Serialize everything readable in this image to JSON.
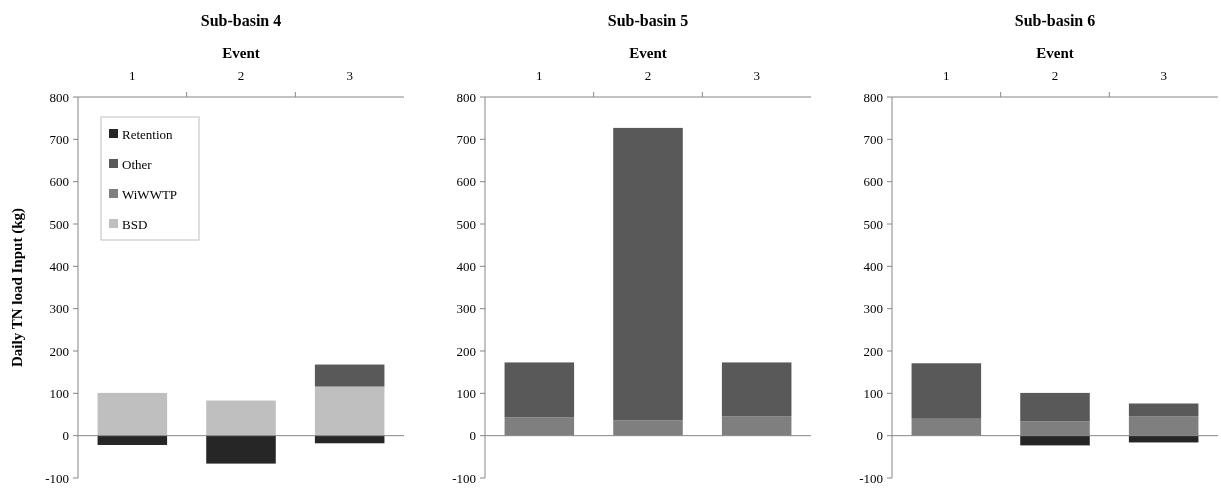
{
  "chart_data": [
    {
      "type": "bar",
      "title": "Sub-basin 4",
      "xlabel": "Event",
      "ylabel": "Daily TN load Input (kg)",
      "categories": [
        "1",
        "2",
        "3"
      ],
      "stacked": true,
      "ylim": [
        -100,
        800
      ],
      "yticks": [
        -100,
        0,
        100,
        200,
        300,
        400,
        500,
        600,
        700,
        800
      ],
      "legend": "top left",
      "series": [
        {
          "name": "BSD",
          "color": "#bfbfbf",
          "values": [
            101,
            83,
            116
          ]
        },
        {
          "name": "WiWWTP",
          "color": "#7f7f7f",
          "values": [
            0,
            0,
            0
          ]
        },
        {
          "name": "Other",
          "color": "#595959",
          "values": [
            0,
            0,
            52
          ]
        },
        {
          "name": "Retention",
          "color": "#262626",
          "values": [
            -22,
            -66,
            -18
          ]
        }
      ]
    },
    {
      "type": "bar",
      "title": "Sub-basin 5",
      "xlabel": "Event",
      "categories": [
        "1",
        "2",
        "3"
      ],
      "stacked": true,
      "ylim": [
        -100,
        800
      ],
      "yticks": [
        -100,
        0,
        100,
        200,
        300,
        400,
        500,
        600,
        700,
        800
      ],
      "series": [
        {
          "color": "#bfbfbf",
          "values": [
            0,
            0,
            0
          ]
        },
        {
          "color": "#7f7f7f",
          "values": [
            43,
            36,
            46
          ]
        },
        {
          "color": "#595959",
          "values": [
            130,
            691,
            127
          ]
        },
        {
          "color": "#262626",
          "values": [
            0,
            0,
            0
          ]
        }
      ]
    },
    {
      "type": "bar",
      "title": "Sub-basin 6",
      "xlabel": "Event",
      "categories": [
        "1",
        "2",
        "3"
      ],
      "stacked": true,
      "ylim": [
        -100,
        800
      ],
      "yticks": [
        -100,
        0,
        100,
        200,
        300,
        400,
        500,
        600,
        700,
        800
      ],
      "series": [
        {
          "color": "#bfbfbf",
          "values": [
            0,
            0,
            0
          ]
        },
        {
          "color": "#7f7f7f",
          "values": [
            40,
            34,
            46
          ]
        },
        {
          "color": "#595959",
          "values": [
            131,
            67,
            30
          ]
        },
        {
          "color": "#262626",
          "values": [
            0,
            -23,
            -16
          ]
        }
      ]
    }
  ]
}
